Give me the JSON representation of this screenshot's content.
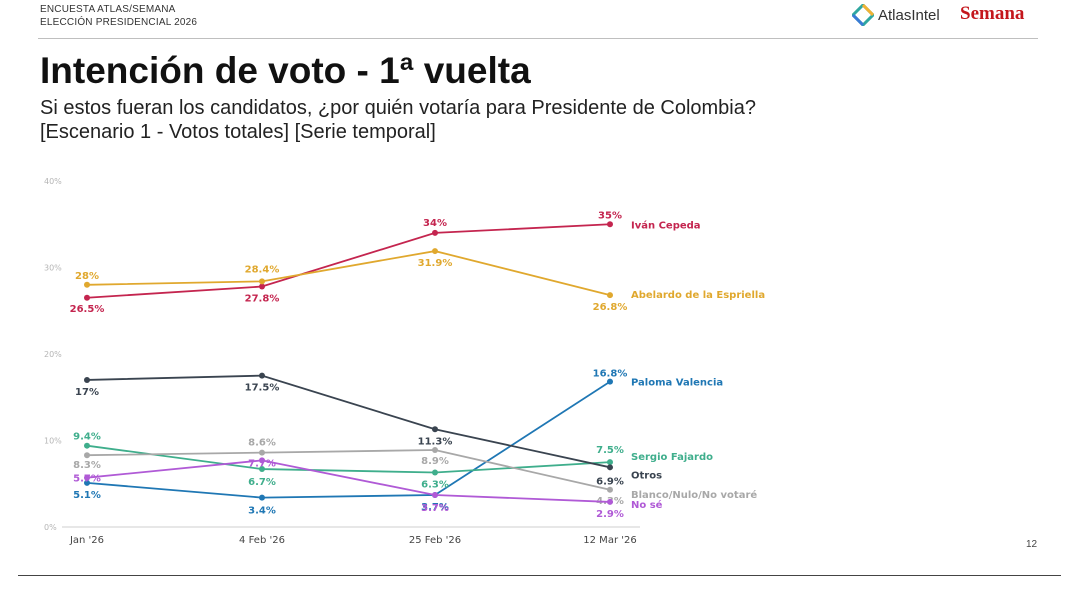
{
  "header": {
    "line1": "ENCUESTA ATLAS/SEMANA",
    "line2": "ELECCIÓN PRESIDENCIAL 2026",
    "logo_atlas": "AtlasIntel",
    "logo_semana": "Semana",
    "atlas_icon": "atlasintel-logo-icon"
  },
  "title": "Intención de voto - 1ª vuelta",
  "subtitle1": "Si estos fueran los candidatos, ¿por quién votaría para Presidente de Colombia?",
  "subtitle2": "[Escenario 1 - Votos totales] [Serie temporal]",
  "page_number": "12",
  "chart_data": {
    "type": "line",
    "x": [
      "Jan '26",
      "4 Feb '26",
      "25 Feb '26",
      "12 Mar '26"
    ],
    "y_ticks": [
      "0%",
      "10%",
      "20%",
      "30%",
      "40%"
    ],
    "ylim": [
      0,
      40
    ],
    "grid": false,
    "legend": "right-end labels",
    "series": [
      {
        "name": "Iván Cepeda",
        "color": "#c4254f",
        "values": [
          26.5,
          27.8,
          34,
          35
        ],
        "labels": [
          "26.5%",
          "27.8%",
          "34%",
          "35%"
        ]
      },
      {
        "name": "Abelardo de la Espriella",
        "color": "#e0a82e",
        "values": [
          28,
          28.4,
          31.9,
          26.8
        ],
        "labels": [
          "28%",
          "28.4%",
          "31.9%",
          "26.8%"
        ]
      },
      {
        "name": "Paloma Valencia",
        "color": "#1f77b4",
        "values": [
          5.1,
          3.4,
          3.7,
          16.8
        ],
        "labels": [
          "5.1%",
          "3.4%",
          "3.7%",
          "16.8%"
        ]
      },
      {
        "name": "Sergio Fajardo",
        "color": "#3fae8c",
        "values": [
          9.4,
          6.7,
          6.3,
          7.5
        ],
        "labels": [
          "9.4%",
          "6.7%",
          "6.3%",
          "7.5%"
        ]
      },
      {
        "name": "Otros",
        "color": "#3a4450",
        "values": [
          17,
          17.5,
          11.3,
          6.9
        ],
        "labels": [
          "17%",
          "17.5%",
          "11.3%",
          "6.9%"
        ]
      },
      {
        "name": "Blanco/Nulo/No votaré",
        "color": "#a8a8a8",
        "values": [
          8.3,
          8.6,
          8.9,
          4.3
        ],
        "labels": [
          "8.3%",
          "8.6%",
          "8.9%",
          "4.3%"
        ]
      },
      {
        "name": "No sé",
        "color": "#b05ad6",
        "values": [
          5.7,
          7.7,
          3.7,
          2.9
        ],
        "labels": [
          "5.7%",
          "7.7%",
          "3.7%",
          "2.9%"
        ]
      }
    ]
  }
}
